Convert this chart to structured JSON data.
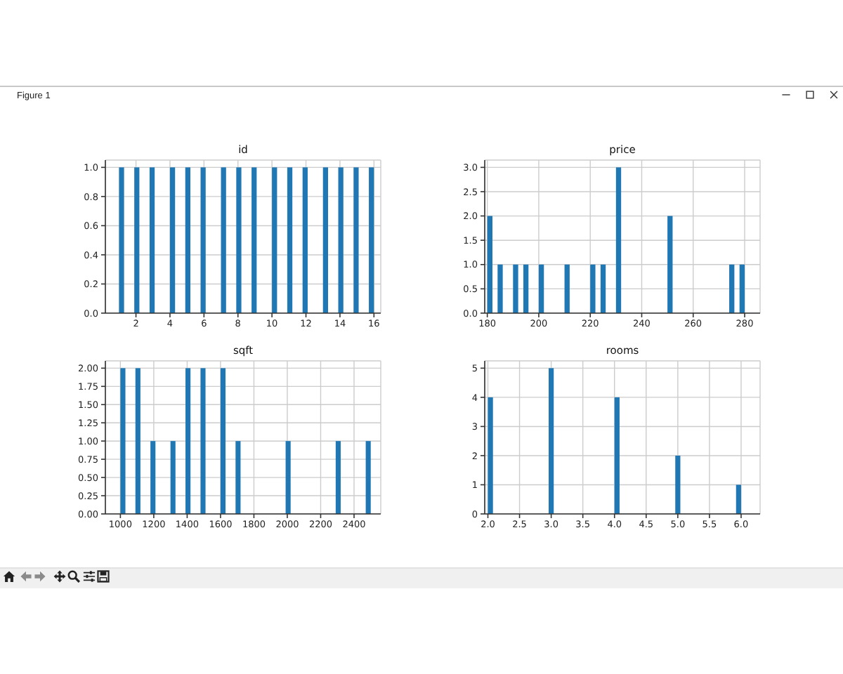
{
  "chart_data": [
    {
      "type": "other",
      "title": "Figure 1"
    },
    {
      "type": "histogram",
      "title": "id",
      "bins": [
        1,
        1.3,
        1.6,
        1.9,
        2.2,
        2.5,
        2.8,
        3.1,
        3.4,
        3.7,
        4,
        4.3,
        4.6,
        4.9,
        5.2,
        5.5,
        5.8,
        6.1,
        6.4,
        6.7,
        7,
        7.3,
        7.6,
        7.9,
        8.2,
        8.5,
        8.8,
        9.1,
        9.4,
        9.7,
        10,
        10.3,
        10.6,
        10.9,
        11.2,
        11.5,
        11.8,
        12.1,
        12.4,
        12.7,
        13,
        13.3,
        13.6,
        13.9,
        14.2,
        14.5,
        14.8,
        15.1,
        15.4,
        15.7,
        16
      ],
      "values": [
        1,
        0,
        0,
        1,
        0,
        0,
        1,
        0,
        0,
        0,
        1,
        0,
        0,
        1,
        0,
        0,
        1,
        0,
        0,
        0,
        1,
        0,
        0,
        1,
        0,
        0,
        1,
        0,
        0,
        0,
        1,
        0,
        0,
        1,
        0,
        0,
        1,
        0,
        0,
        0,
        1,
        0,
        0,
        1,
        0,
        0,
        1,
        0,
        0,
        1
      ],
      "color": "#1f77b4",
      "xlim": [
        0.2,
        16.4
      ],
      "xticks": [
        2,
        4,
        6,
        8,
        10,
        12,
        14,
        16
      ],
      "ylim": [
        0,
        1.05
      ],
      "yticks": [
        {
          "value": 0,
          "label": "0.0"
        },
        0.2,
        0.4,
        0.6,
        0.8,
        {
          "value": 1,
          "label": "1.0"
        }
      ],
      "grid": true
    },
    {
      "type": "histogram",
      "title": "price",
      "bins": [
        180,
        182,
        184,
        186,
        188,
        190,
        192,
        194,
        196,
        198,
        200,
        202,
        204,
        206,
        208,
        210,
        212,
        214,
        216,
        218,
        220,
        222,
        224,
        226,
        228,
        230,
        232,
        234,
        236,
        238,
        240,
        242,
        244,
        246,
        248,
        250,
        252,
        254,
        256,
        258,
        260,
        262,
        264,
        266,
        268,
        270,
        272,
        274,
        276,
        278,
        280
      ],
      "values": [
        2,
        0,
        1,
        0,
        0,
        1,
        0,
        1,
        0,
        0,
        1,
        0,
        0,
        0,
        0,
        1,
        0,
        0,
        0,
        0,
        1,
        0,
        1,
        0,
        0,
        3,
        0,
        0,
        0,
        0,
        0,
        0,
        0,
        0,
        0,
        2,
        0,
        0,
        0,
        0,
        0,
        0,
        0,
        0,
        0,
        0,
        0,
        1,
        0,
        1
      ],
      "color": "#1f77b4",
      "xlim": [
        179,
        286
      ],
      "xticks": [
        180,
        200,
        220,
        240,
        260,
        280
      ],
      "ylim": [
        0,
        3.15
      ],
      "yticks": [
        {
          "value": 0,
          "label": "0.0"
        },
        0.5,
        {
          "value": 1,
          "label": "1.0"
        },
        1.5,
        {
          "value": 2,
          "label": "2.0"
        },
        2.5,
        {
          "value": 3,
          "label": "3.0"
        }
      ],
      "grid": true
    },
    {
      "type": "histogram",
      "title": "sqft",
      "bins": [
        1000,
        1030,
        1060,
        1090,
        1120,
        1150,
        1180,
        1210,
        1240,
        1270,
        1300,
        1330,
        1360,
        1390,
        1420,
        1450,
        1480,
        1510,
        1540,
        1570,
        1600,
        1630,
        1660,
        1690,
        1720,
        1750,
        1780,
        1810,
        1840,
        1870,
        1900,
        1930,
        1960,
        1990,
        2020,
        2050,
        2080,
        2110,
        2140,
        2170,
        2200,
        2230,
        2260,
        2290,
        2320,
        2350,
        2380,
        2410,
        2440,
        2470,
        2500
      ],
      "values": [
        2,
        0,
        0,
        2,
        0,
        0,
        1,
        0,
        0,
        0,
        1,
        0,
        0,
        2,
        0,
        0,
        2,
        0,
        0,
        0,
        2,
        0,
        0,
        1,
        0,
        0,
        0,
        0,
        0,
        0,
        0,
        0,
        0,
        1,
        0,
        0,
        0,
        0,
        0,
        0,
        0,
        0,
        0,
        1,
        0,
        0,
        0,
        0,
        0,
        1
      ],
      "color": "#1f77b4",
      "xlim": [
        910,
        2560
      ],
      "xticks": [
        1000,
        1200,
        1400,
        1600,
        1800,
        2000,
        2200,
        2400
      ],
      "ylim": [
        0,
        2.1
      ],
      "yticks": [
        {
          "value": 0,
          "label": "0.00"
        },
        0.25,
        {
          "value": 0.5,
          "label": "0.50"
        },
        0.75,
        {
          "value": 1,
          "label": "1.00"
        },
        1.25,
        {
          "value": 1.5,
          "label": "1.50"
        },
        1.75,
        {
          "value": 2,
          "label": "2.00"
        }
      ],
      "grid": true
    },
    {
      "type": "histogram",
      "title": "rooms",
      "bins": [
        2,
        2.08,
        2.16,
        2.24,
        2.32,
        2.4,
        2.48,
        2.56,
        2.64,
        2.72,
        2.8,
        2.88,
        2.96,
        3.04,
        3.12,
        3.2,
        3.28,
        3.36,
        3.44,
        3.52,
        3.6,
        3.68,
        3.76,
        3.84,
        3.92,
        4,
        4.08,
        4.16,
        4.24,
        4.32,
        4.4,
        4.48,
        4.56,
        4.64,
        4.72,
        4.8,
        4.88,
        4.96,
        5.04,
        5.12,
        5.2,
        5.28,
        5.36,
        5.44,
        5.52,
        5.6,
        5.68,
        5.76,
        5.84,
        5.92,
        6
      ],
      "values": [
        4,
        0,
        0,
        0,
        0,
        0,
        0,
        0,
        0,
        0,
        0,
        0,
        5,
        0,
        0,
        0,
        0,
        0,
        0,
        0,
        0,
        0,
        0,
        0,
        0,
        4,
        0,
        0,
        0,
        0,
        0,
        0,
        0,
        0,
        0,
        0,
        0,
        2,
        0,
        0,
        0,
        0,
        0,
        0,
        0,
        0,
        0,
        0,
        0,
        1
      ],
      "color": "#1f77b4",
      "xlim": [
        1.95,
        6.3
      ],
      "xticks": [
        {
          "value": 2,
          "label": "2.0"
        },
        2.5,
        {
          "value": 3,
          "label": "3.0"
        },
        3.5,
        {
          "value": 4,
          "label": "4.0"
        },
        4.5,
        {
          "value": 5,
          "label": "5.0"
        },
        5.5,
        {
          "value": 6,
          "label": "6.0"
        }
      ],
      "ylim": [
        0,
        5.25
      ],
      "yticks": [
        0,
        1,
        2,
        3,
        4,
        5
      ],
      "grid": true
    }
  ]
}
